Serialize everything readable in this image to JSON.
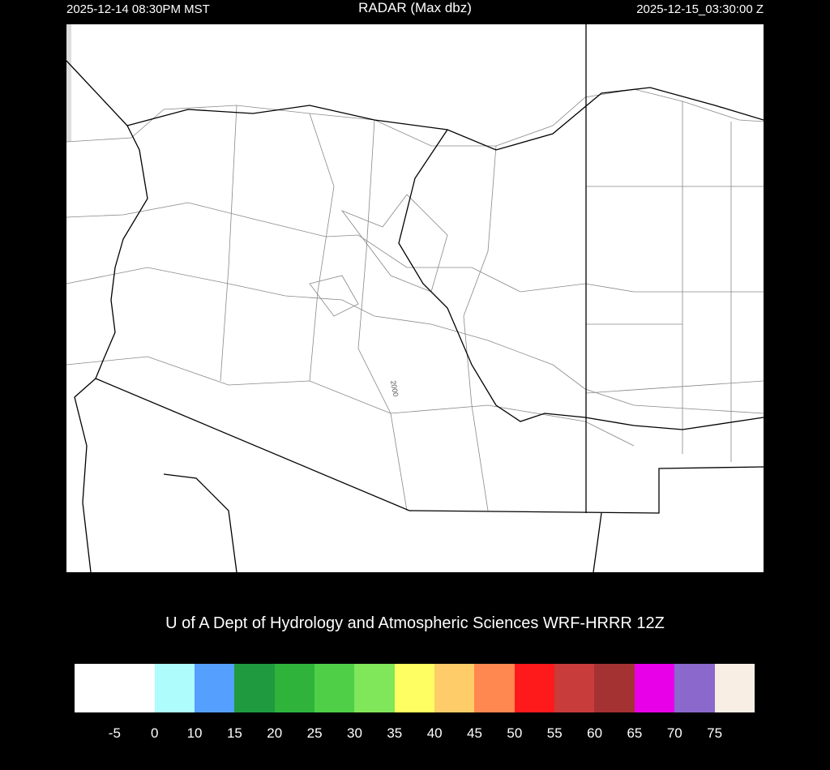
{
  "header": {
    "title": "RADAR (Max dbz)",
    "local_time": "2025-12-14 08:30PM MST",
    "utc_time": "2025-12-15_03:30:00 Z"
  },
  "map": {
    "contour_label": "2000",
    "background": "#ffffff",
    "state_border_color": "#000000",
    "county_line_color": "#808080"
  },
  "credit": "U of A Dept of Hydrology and Atmospheric Sciences WRF-HRRR 12Z",
  "colorbar": {
    "colors": [
      "#ffffff",
      "#aefcfc",
      "#559ffe",
      "#1f9a3f",
      "#2fb33b",
      "#4fcf48",
      "#80e65a",
      "#fefe62",
      "#fecc69",
      "#fe884f",
      "#fe1a1a",
      "#c83c3c",
      "#a43232",
      "#e800e8",
      "#8a68cc",
      "#f8eee4"
    ],
    "labels": [
      "-5",
      "0",
      "10",
      "15",
      "20",
      "25",
      "30",
      "35",
      "40",
      "45",
      "50",
      "55",
      "60",
      "65",
      "70",
      "75"
    ]
  }
}
